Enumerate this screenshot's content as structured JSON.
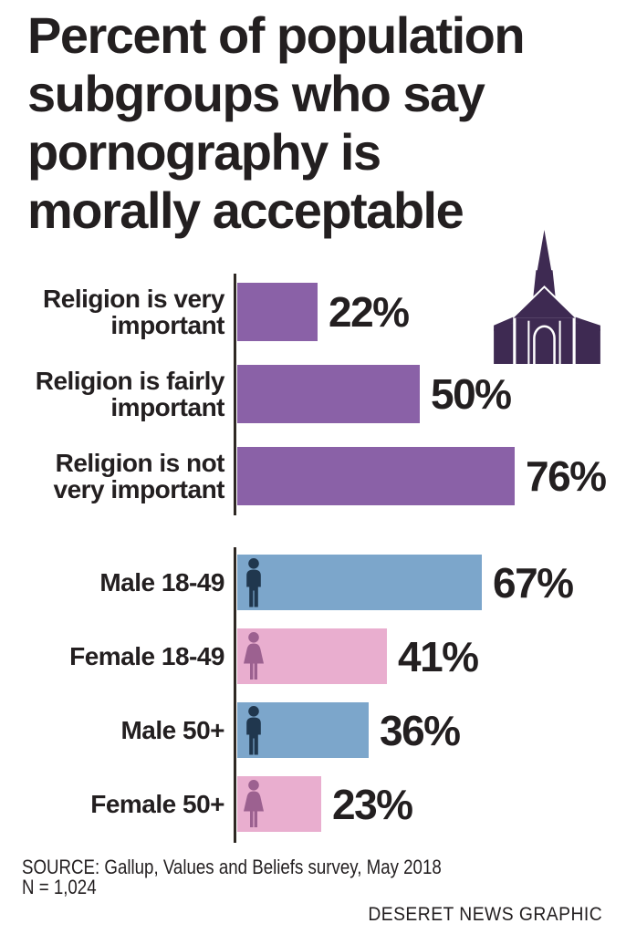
{
  "title": {
    "text": "Percent of population subgroups who say pornography is morally acceptable",
    "lines": [
      "Percent of population",
      "subgroups who say",
      "pornography is",
      "morally acceptable"
    ]
  },
  "icons": {
    "church": "church-icon",
    "male": "male-person-icon",
    "female": "female-person-icon"
  },
  "colors": {
    "text": "#231f20",
    "axis": "#2e2823",
    "background": "#ffffff",
    "bar_purple": "#8a61a7",
    "bar_blue": "#7ca6cb",
    "bar_pink": "#e9aecf",
    "icon_male": "#20374e",
    "icon_female": "#9c6190",
    "church": "#3e2a52"
  },
  "chart_data": {
    "type": "bar",
    "orientation": "horizontal",
    "unit": "%",
    "title": "Percent of population subgroups who say pornography is morally acceptable",
    "xlabel": "",
    "ylabel": "",
    "legend": "none",
    "grid": false,
    "categories": [
      "Religion is very important",
      "Religion is fairly important",
      "Religion is not very important",
      "Male 18-49",
      "Female 18-49",
      "Male 50+",
      "Female 50+"
    ],
    "values": [
      22,
      50,
      76,
      67,
      41,
      36,
      23
    ],
    "groups": [
      {
        "name": "religion-importance",
        "rows": [
          {
            "category": "Religion is very important",
            "label_lines": [
              "Religion is very",
              "important"
            ],
            "value": 22,
            "display": "22%",
            "color": "bar_purple",
            "icon": null
          },
          {
            "category": "Religion is fairly important",
            "label_lines": [
              "Religion is fairly",
              "important"
            ],
            "value": 50,
            "display": "50%",
            "color": "bar_purple",
            "icon": null
          },
          {
            "category": "Religion is not very important",
            "label_lines": [
              "Religion is not",
              "very important"
            ],
            "value": 76,
            "display": "76%",
            "color": "bar_purple",
            "icon": null
          }
        ]
      },
      {
        "name": "gender-age",
        "rows": [
          {
            "category": "Male 18-49",
            "label_lines": [
              "Male 18-49"
            ],
            "value": 67,
            "display": "67%",
            "color": "bar_blue",
            "icon": "male"
          },
          {
            "category": "Female 18-49",
            "label_lines": [
              "Female 18-49"
            ],
            "value": 41,
            "display": "41%",
            "color": "bar_pink",
            "icon": "female"
          },
          {
            "category": "Male 50+",
            "label_lines": [
              "Male 50+"
            ],
            "value": 36,
            "display": "36%",
            "color": "bar_blue",
            "icon": "male"
          },
          {
            "category": "Female 50+",
            "label_lines": [
              "Female 50+"
            ],
            "value": 23,
            "display": "23%",
            "color": "bar_pink",
            "icon": "female"
          }
        ]
      }
    ]
  },
  "footer": {
    "source_line1": "SOURCE: Gallup, Values and Beliefs survey, May 2018",
    "source_line2": "N = 1,024",
    "credit": "DESERET NEWS GRAPHIC"
  }
}
